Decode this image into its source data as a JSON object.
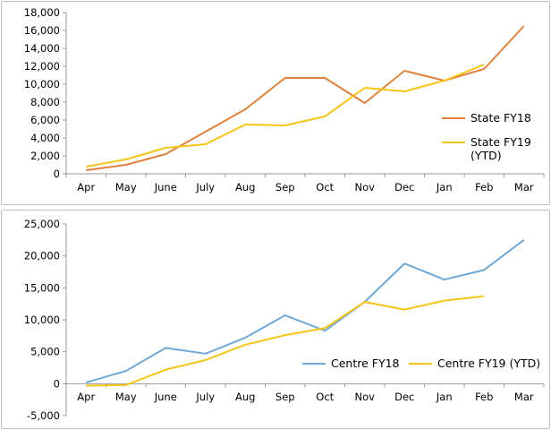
{
  "chart_data": [
    {
      "type": "line",
      "title": "",
      "xlabel": "",
      "ylabel": "",
      "categories": [
        "Apr",
        "May",
        "June",
        "July",
        "Aug",
        "Sep",
        "Oct",
        "Nov",
        "Dec",
        "Jan",
        "Feb",
        "Mar"
      ],
      "yticks": [
        "0",
        "2,000",
        "4,000",
        "6,000",
        "8,000",
        "10,000",
        "12,000",
        "14,000",
        "16,000",
        "18,000"
      ],
      "ylim": [
        0,
        18000
      ],
      "grid": false,
      "legend_position": "right",
      "series": [
        {
          "name": "State FY18",
          "color": "#e0823d",
          "values": [
            400,
            1000,
            2200,
            4700,
            7200,
            10700,
            10700,
            7900,
            11500,
            10400,
            11700,
            16500
          ]
        },
        {
          "name": "State FY19 (YTD)",
          "name_lines": [
            "State FY19",
            "(YTD)"
          ],
          "color": "#f5c518",
          "values": [
            800,
            1600,
            2900,
            3300,
            5500,
            5400,
            6400,
            9600,
            9200,
            10400,
            12200,
            null
          ]
        }
      ]
    },
    {
      "type": "line",
      "title": "",
      "xlabel": "",
      "ylabel": "",
      "categories": [
        "Apr",
        "May",
        "June",
        "July",
        "Aug",
        "Sep",
        "Oct",
        "Nov",
        "Dec",
        "Jan",
        "Feb",
        "Mar"
      ],
      "yticks": [
        "-5,000",
        "0",
        "5,000",
        "10,000",
        "15,000",
        "20,000",
        "25,000"
      ],
      "ylim": [
        -5000,
        25000
      ],
      "grid": false,
      "legend_position": "bottom-right",
      "series": [
        {
          "name": "Centre FY18",
          "color": "#6fa8d6",
          "values": [
            200,
            2000,
            5600,
            4700,
            7200,
            10700,
            8300,
            12800,
            18800,
            16300,
            17800,
            22500
          ]
        },
        {
          "name": "Centre FY19 (YTD)",
          "color": "#f5c518",
          "values": [
            -300,
            -200,
            2200,
            3700,
            6100,
            7600,
            8700,
            12800,
            11600,
            13000,
            13700,
            null
          ]
        }
      ]
    }
  ]
}
